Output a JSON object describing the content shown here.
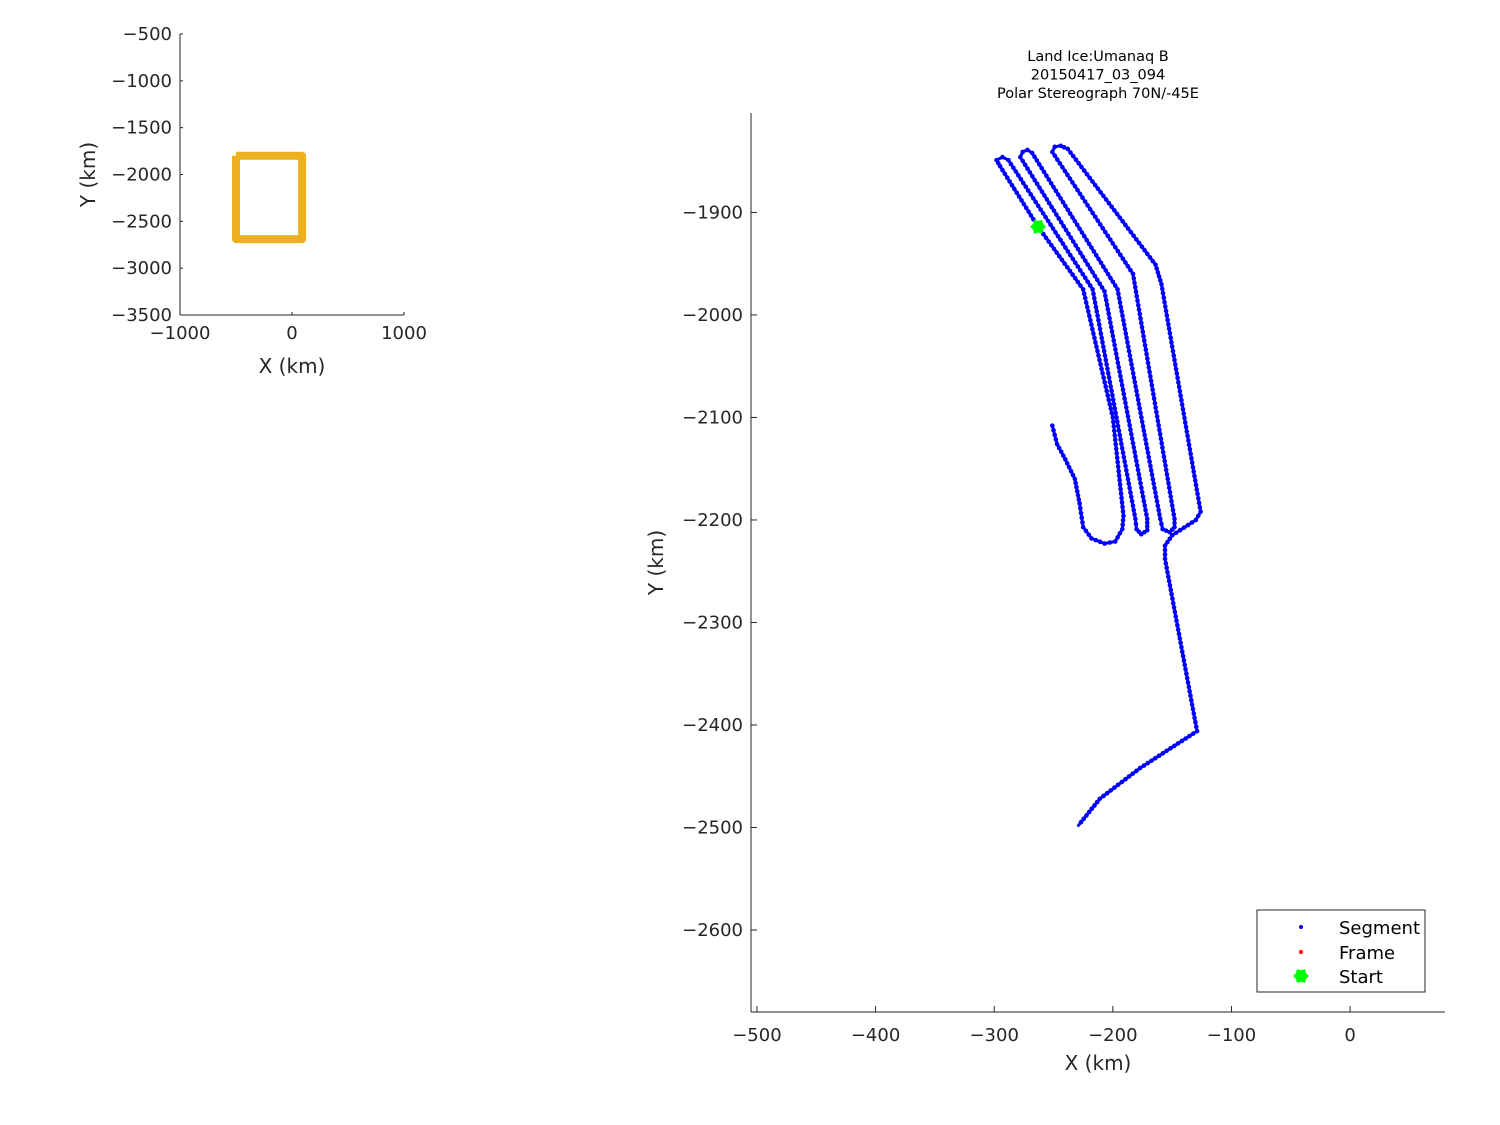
{
  "chart_data": [
    {
      "type": "line",
      "xlabel": "X (km)",
      "ylabel": "Y (km)",
      "xlim": [
        -1000,
        1000
      ],
      "ylim": [
        -3500,
        -500
      ],
      "xticks": [
        -1000,
        0,
        1000
      ],
      "yticks": [
        -3500,
        -3000,
        -2500,
        -2000,
        -1500,
        -1000,
        -500
      ],
      "grid": false,
      "series": [
        {
          "color": "#EDB120",
          "points": [
            [
              -500,
              -1800
            ],
            [
              90,
              -1800
            ],
            [
              90,
              -2690
            ],
            [
              -500,
              -2690
            ],
            [
              -500,
              -1800
            ]
          ]
        }
      ]
    },
    {
      "type": "scatter",
      "title": [
        "Land Ice:Umanaq B",
        "20150417_03_094",
        "Polar Stereograph 70N/-45E"
      ],
      "xlabel": "X (km)",
      "ylabel": "Y (km)",
      "xlim": [
        -505,
        80
      ],
      "ylim": [
        -2680,
        -1803
      ],
      "xticks": [
        -500,
        -400,
        -300,
        -200,
        -100,
        0
      ],
      "yticks": [
        -2600,
        -2500,
        -2400,
        -2300,
        -2200,
        -2100,
        -2000,
        -1900
      ],
      "grid": false,
      "legend_placement": "bottom-right",
      "series": [
        {
          "name": "Segment",
          "color": "#0000FF",
          "marker": "dot",
          "points": [
            [
              -251,
              -2108
            ],
            [
              -247,
              -2126
            ],
            [
              -240,
              -2141
            ],
            [
              -232,
              -2160
            ],
            [
              -228,
              -2184
            ],
            [
              -225,
              -2207
            ],
            [
              -218,
              -2218
            ],
            [
              -207,
              -2223
            ],
            [
              -198,
              -2221
            ],
            [
              -192,
              -2209
            ],
            [
              -191,
              -2196
            ],
            [
              -200,
              -2100
            ],
            [
              -225,
              -1975
            ],
            [
              -263,
              -1914
            ],
            [
              -295,
              -1855
            ],
            [
              -298,
              -1849
            ],
            [
              -293,
              -1846
            ],
            [
              -288,
              -1849
            ],
            [
              -217,
              -1975
            ],
            [
              -181,
              -2199
            ],
            [
              -180,
              -2209
            ],
            [
              -176,
              -2214
            ],
            [
              -171,
              -2210
            ],
            [
              -171,
              -2199
            ],
            [
              -207,
              -1977
            ],
            [
              -278,
              -1846
            ],
            [
              -276,
              -1841
            ],
            [
              -272,
              -1839
            ],
            [
              -268,
              -1842
            ],
            [
              -196,
              -1975
            ],
            [
              -160,
              -2199
            ],
            [
              -158,
              -2209
            ],
            [
              -152,
              -2212
            ],
            [
              -148,
              -2207
            ],
            [
              -148,
              -2199
            ],
            [
              -183,
              -1960
            ],
            [
              -251,
              -1841
            ],
            [
              -249,
              -1836
            ],
            [
              -244,
              -1835
            ],
            [
              -238,
              -1838
            ],
            [
              -164,
              -1951
            ],
            [
              -159,
              -1970
            ],
            [
              -126,
              -2192
            ],
            [
              -130,
              -2200
            ],
            [
              -150,
              -2215
            ],
            [
              -156,
              -2225
            ],
            [
              -156,
              -2238
            ],
            [
              -129,
              -2406
            ],
            [
              -177,
              -2442
            ],
            [
              -211,
              -2472
            ],
            [
              -229,
              -2498
            ]
          ]
        },
        {
          "name": "Frame",
          "color": "#FF0000",
          "marker": "dot",
          "points": []
        },
        {
          "name": "Start",
          "color": "#00FF00",
          "marker": "hexagram",
          "points": [
            [
              -263,
              -1914
            ]
          ]
        }
      ]
    }
  ]
}
